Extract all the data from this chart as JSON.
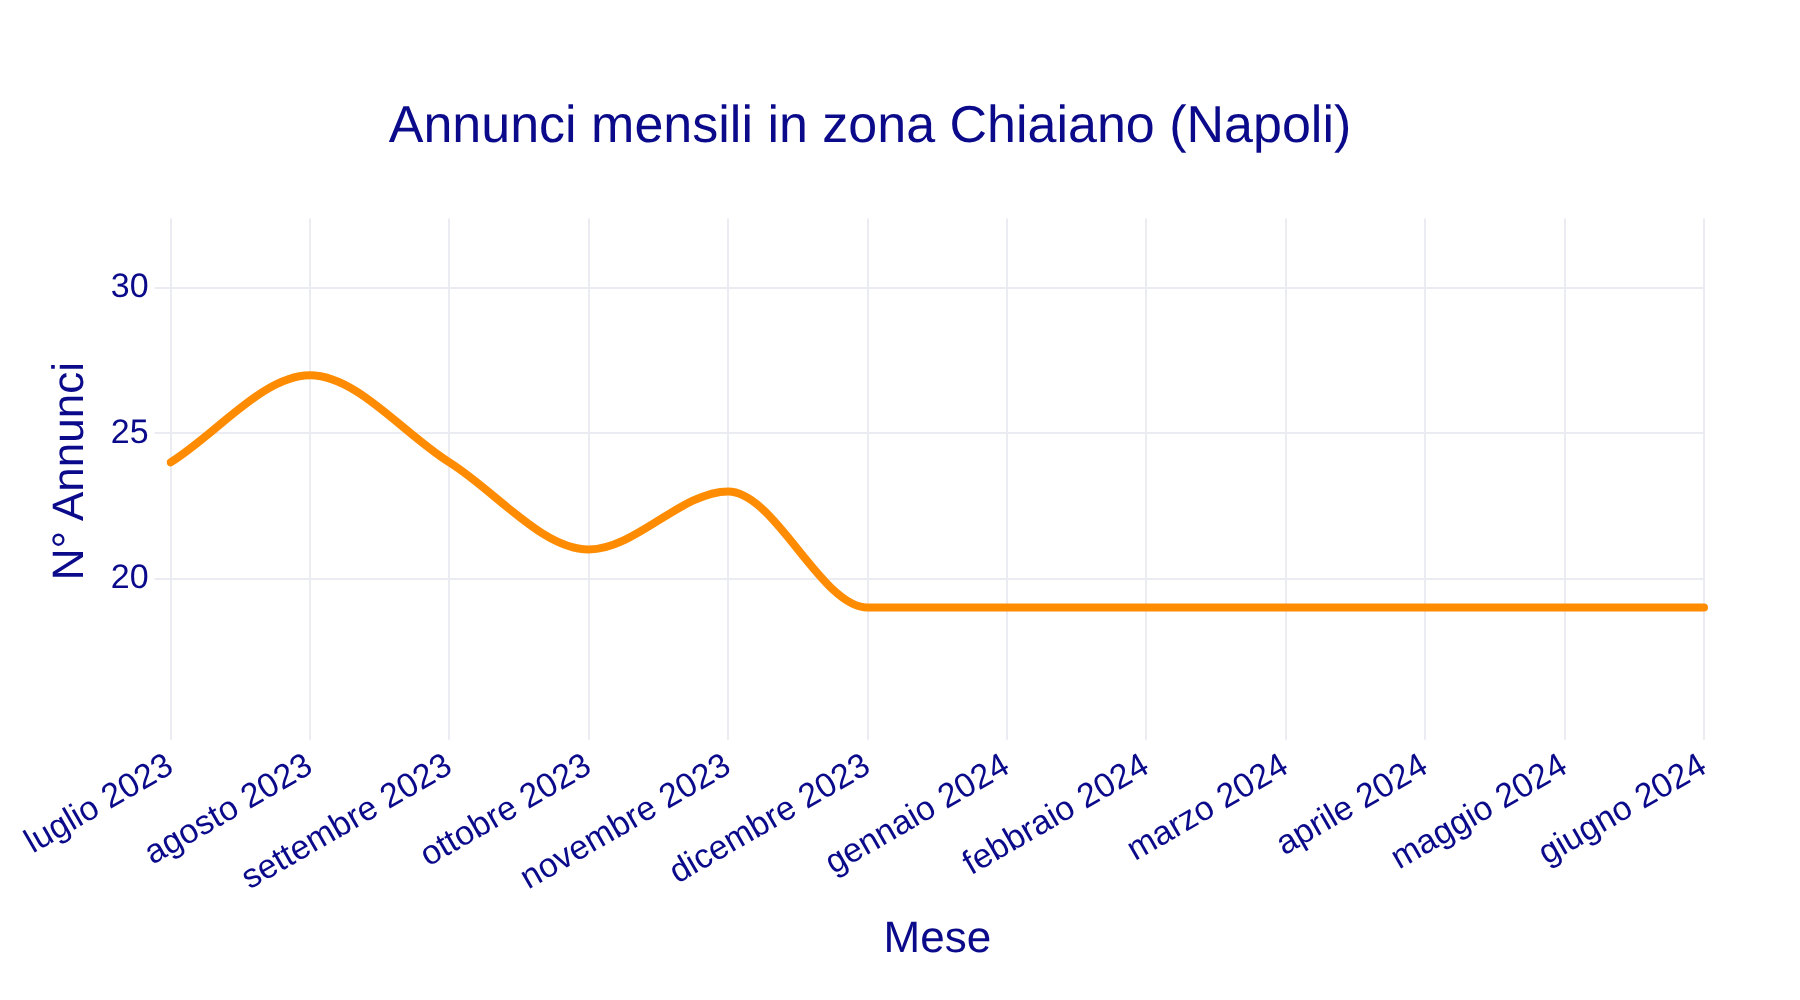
{
  "chart_data": {
    "type": "line",
    "title": "Annunci mensili in zona Chiaiano (Napoli)",
    "xlabel": "Mese",
    "ylabel": "N° Annunci",
    "categories": [
      "luglio 2023",
      "agosto 2023",
      "settembre 2023",
      "ottobre 2023",
      "novembre 2023",
      "dicembre 2023",
      "gennaio 2024",
      "febbraio 2024",
      "marzo 2024",
      "aprile 2024",
      "maggio 2024",
      "giugno 2024"
    ],
    "series": [
      {
        "color": "#ff8c00",
        "values": [
          24,
          27,
          24,
          21,
          23,
          19,
          19,
          19,
          19,
          19,
          19,
          19
        ]
      }
    ],
    "ylim": [
      15,
      32.4
    ],
    "yticks": [
      20,
      25,
      30
    ],
    "grid": true,
    "legend": false,
    "marker": "none",
    "line_style": "solid"
  }
}
